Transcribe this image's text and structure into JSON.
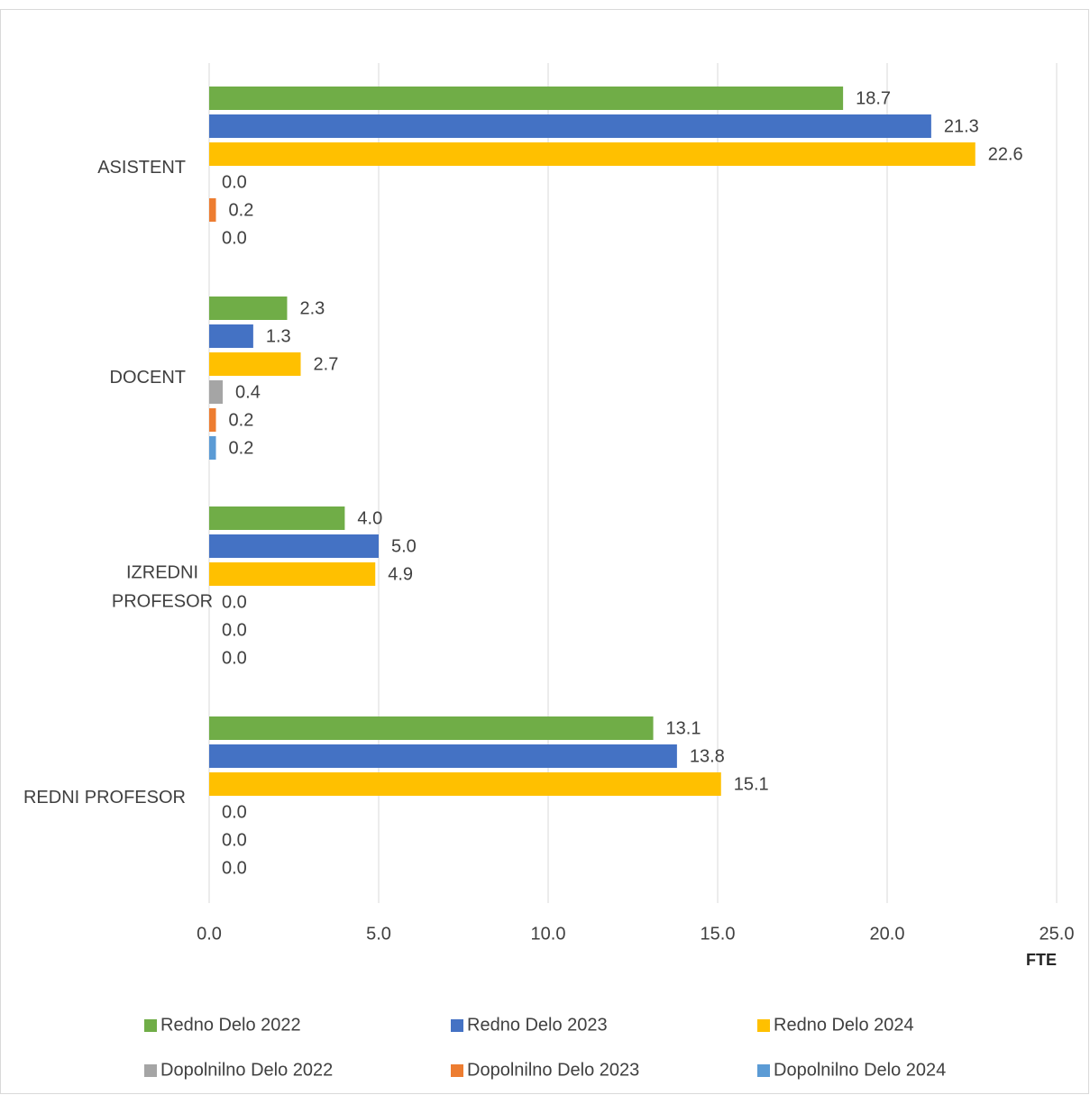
{
  "chart_data": {
    "type": "hbar",
    "categories": [
      "ASISTENT",
      "DOCENT",
      "IZREDNI PROFESOR",
      "REDNI PROFESOR"
    ],
    "series": [
      {
        "name": "Redno Delo 2022",
        "color": "#70ad47",
        "values": [
          18.7,
          2.3,
          4.0,
          13.1
        ],
        "value_labels": [
          "18.7",
          "2.3",
          "4.0",
          "13.1"
        ]
      },
      {
        "name": "Redno Delo 2023",
        "color": "#4472c4",
        "values": [
          21.3,
          1.3,
          5.0,
          13.8
        ],
        "value_labels": [
          "21.3",
          "1.3",
          "5.0",
          "13.8"
        ]
      },
      {
        "name": "Redno Delo 2024",
        "color": "#ffc000",
        "values": [
          22.6,
          2.7,
          4.9,
          15.1
        ],
        "value_labels": [
          "22.6",
          "2.7",
          "4.9",
          "15.1"
        ]
      },
      {
        "name": "Dopolnilno Delo 2022",
        "color": "#a5a5a5",
        "values": [
          0.0,
          0.4,
          0.0,
          0.0
        ],
        "value_labels": [
          "0.0",
          "0.4",
          "0.0",
          "0.0"
        ]
      },
      {
        "name": "Dopolnilno Delo 2023",
        "color": "#ed7d31",
        "values": [
          0.2,
          0.2,
          0.0,
          0.0
        ],
        "value_labels": [
          "0.2",
          "0.2",
          "0.0",
          "0.0"
        ]
      },
      {
        "name": "Dopolnilno Delo 2024",
        "color": "#5b9bd5",
        "values": [
          0.0,
          0.2,
          0.0,
          0.0
        ],
        "value_labels": [
          "0.0",
          "0.2",
          "0.0",
          "0.0"
        ]
      }
    ],
    "xlabel": "FTE",
    "xlim": [
      0,
      25
    ],
    "xticks": [
      {
        "value": 0,
        "label": "0.0"
      },
      {
        "value": 5,
        "label": "5.0"
      },
      {
        "value": 10,
        "label": "10.0"
      },
      {
        "value": 15,
        "label": "15.0"
      },
      {
        "value": 20,
        "label": "20.0"
      },
      {
        "value": 25,
        "label": "25.0"
      }
    ],
    "grid": true,
    "legend": "bottom"
  }
}
